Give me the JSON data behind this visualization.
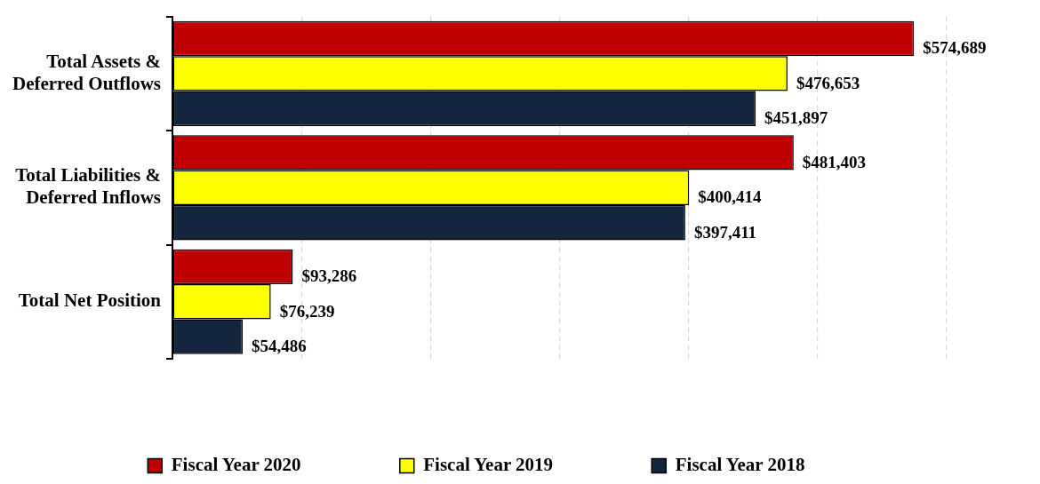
{
  "chart_data": {
    "type": "bar",
    "orientation": "horizontal",
    "categories": [
      "Total Assets & Deferred Outflows",
      "Total Liabilities & Deferred Inflows",
      "Total Net Position"
    ],
    "series": [
      {
        "name": "Fiscal Year 2020",
        "color": "#c00000",
        "values": [
          574689,
          481403,
          93286
        ],
        "value_labels": [
          "$574,689",
          "$481,403",
          "$93,286"
        ]
      },
      {
        "name": "Fiscal Year 2019",
        "color": "#ffff00",
        "values": [
          476653,
          400414,
          76239
        ],
        "value_labels": [
          "$476,653",
          "$400,414",
          "$76,239"
        ]
      },
      {
        "name": "Fiscal Year 2018",
        "color": "#14263f",
        "values": [
          451897,
          397411,
          54486
        ],
        "value_labels": [
          "$451,897",
          "$397,411",
          "$54,486"
        ]
      }
    ],
    "xlim": [
      0,
      600000
    ],
    "xticks": [
      {
        "value": 0,
        "label": null
      },
      {
        "value": 100000,
        "label": null
      },
      {
        "value": 200000,
        "label": null
      },
      {
        "value": 300000,
        "label": null
      },
      {
        "value": 400000,
        "label": null
      },
      {
        "value": 500000,
        "label": null
      },
      {
        "value": 600000,
        "label": null
      }
    ],
    "tick_labels": "y",
    "grid": "x",
    "legend": "bottom"
  }
}
